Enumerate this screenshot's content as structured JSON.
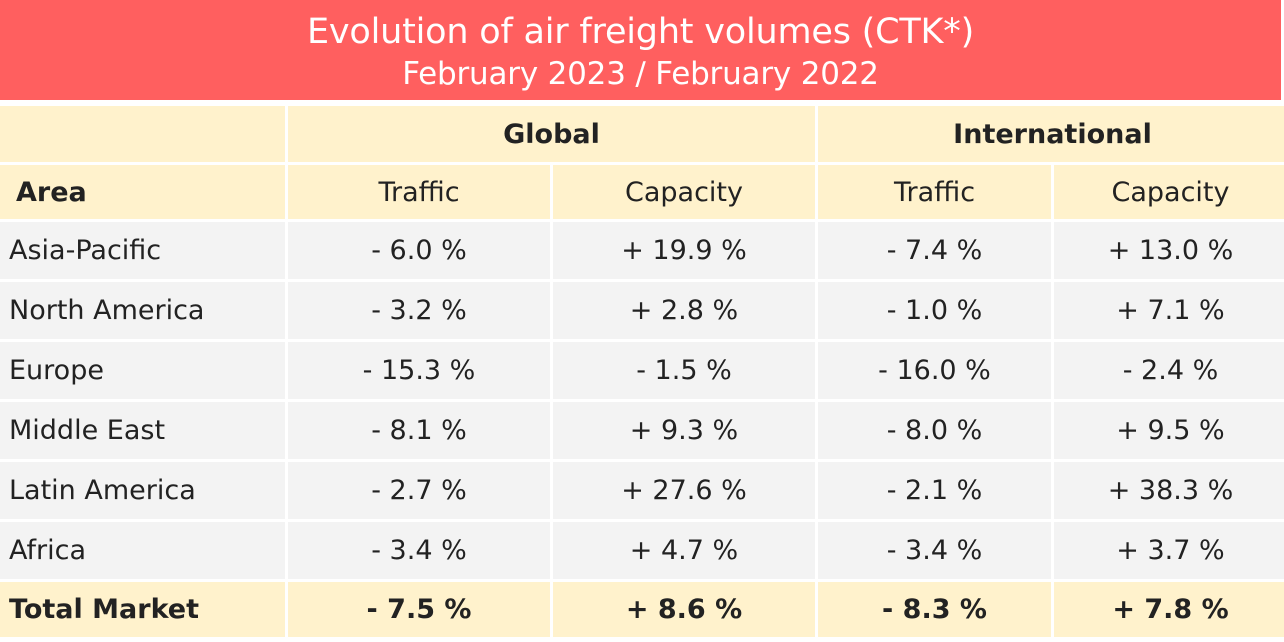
{
  "title": {
    "line1": "Evolution of air freight volumes (CTK*)",
    "line2": "February 2023 / February 2022"
  },
  "groups": {
    "global": "Global",
    "international": "International"
  },
  "columns": {
    "area": "Area",
    "global_traffic": "Traffic",
    "global_capacity": "Capacity",
    "intl_traffic": "Traffic",
    "intl_capacity": "Capacity"
  },
  "rows": [
    {
      "area": "Asia-Pacific",
      "global_traffic": "- 6.0 %",
      "global_capacity": "+ 19.9 %",
      "intl_traffic": "- 7.4 %",
      "intl_capacity": "+ 13.0 %"
    },
    {
      "area": "North America",
      "global_traffic": "- 3.2 %",
      "global_capacity": "+ 2.8 %",
      "intl_traffic": "- 1.0 %",
      "intl_capacity": "+ 7.1 %"
    },
    {
      "area": "Europe",
      "global_traffic": "- 15.3 %",
      "global_capacity": "- 1.5 %",
      "intl_traffic": "- 16.0 %",
      "intl_capacity": "- 2.4 %"
    },
    {
      "area": "Middle East",
      "global_traffic": "- 8.1 %",
      "global_capacity": "+ 9.3 %",
      "intl_traffic": "- 8.0 %",
      "intl_capacity": "+ 9.5 %"
    },
    {
      "area": "Latin America",
      "global_traffic": "- 2.7 %",
      "global_capacity": "+ 27.6 %",
      "intl_traffic": "- 2.1 %",
      "intl_capacity": "+ 38.3 %"
    },
    {
      "area": "Africa",
      "global_traffic": "- 3.4 %",
      "global_capacity": "+ 4.7 %",
      "intl_traffic": "- 3.4 %",
      "intl_capacity": "+ 3.7 %"
    }
  ],
  "total": {
    "area": "Total Market",
    "global_traffic": "- 7.5 %",
    "global_capacity": "+ 8.6 %",
    "intl_traffic": "- 8.3 %",
    "intl_capacity": "+ 7.8 %"
  },
  "colors": {
    "banner": "#ff5f5f",
    "header_fill": "#fff2cc",
    "row_fill": "#f3f3f3"
  }
}
